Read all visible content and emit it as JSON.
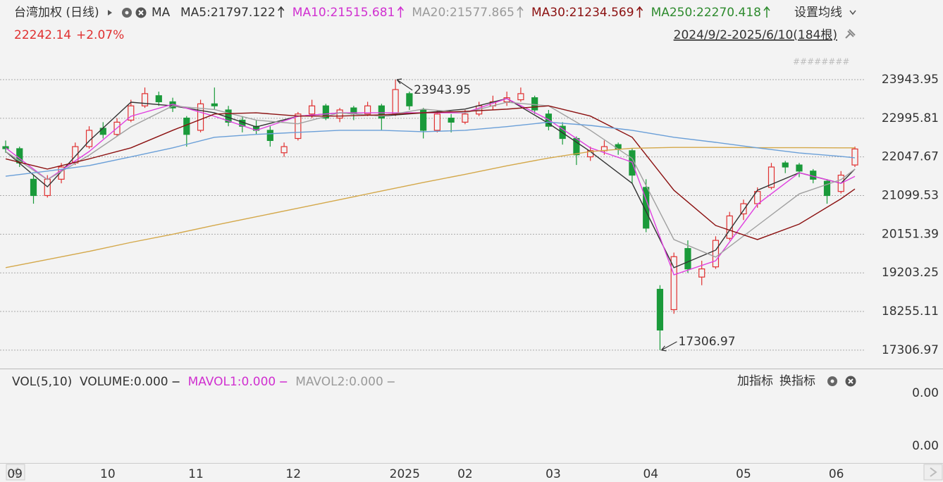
{
  "chart_data": {
    "type": "candlestick",
    "title": "台湾加权 (日线)",
    "indicator": "MA",
    "quote": {
      "price": "22242.14",
      "change": "+2.07%"
    },
    "settings_label": "设置均线",
    "range_label": "2024/9/2-2025/6/10(184根)",
    "up_color": "#e03030",
    "down_color": "#1a9a3a",
    "grid": true,
    "xlim": [
      0,
      183
    ],
    "ylim": [
      17080,
      24255
    ],
    "yticks": [
      23943.95,
      22995.81,
      22047.67,
      21099.53,
      20151.39,
      19203.25,
      18255.11,
      17306.97
    ],
    "xticks": [
      {
        "value": 2,
        "label": "09"
      },
      {
        "value": 22,
        "label": "10"
      },
      {
        "value": 41,
        "label": "11"
      },
      {
        "value": 62,
        "label": "12"
      },
      {
        "value": 86,
        "label": "2025"
      },
      {
        "value": 99,
        "label": "02"
      },
      {
        "value": 118,
        "label": "03"
      },
      {
        "value": 139,
        "label": "04"
      },
      {
        "value": 159,
        "label": "05"
      },
      {
        "value": 179,
        "label": "06"
      }
    ],
    "annotations": [
      {
        "value": 23943.95
      },
      {
        "value": 17306.97
      }
    ],
    "candles": {
      "x": [
        0,
        3,
        6,
        9,
        12,
        15,
        18,
        21,
        24,
        27,
        30,
        33,
        36,
        39,
        42,
        45,
        48,
        51,
        54,
        57,
        60,
        63,
        66,
        69,
        72,
        75,
        78,
        81,
        84,
        87,
        90,
        93,
        96,
        99,
        102,
        105,
        108,
        111,
        114,
        117,
        120,
        123,
        126,
        129,
        132,
        135,
        138,
        141,
        144,
        147,
        150,
        153,
        156,
        159,
        162,
        165,
        168,
        171,
        174,
        177,
        180,
        183
      ],
      "open": [
        22300,
        22250,
        21500,
        21100,
        21500,
        21900,
        22300,
        22750,
        22600,
        22950,
        23300,
        23550,
        23400,
        23000,
        22700,
        23350,
        23200,
        22950,
        22800,
        22700,
        22150,
        22500,
        23100,
        23300,
        23000,
        23250,
        23100,
        23300,
        23100,
        23600,
        23200,
        22700,
        23000,
        22900,
        23100,
        23300,
        23400,
        23450,
        23500,
        23100,
        22800,
        22500,
        22050,
        22200,
        22350,
        22200,
        21300,
        18800,
        18300,
        19800,
        19100,
        19350,
        20050,
        20650,
        20900,
        21300,
        21900,
        21850,
        21700,
        21450,
        21200,
        21850
      ],
      "high": [
        22450,
        22300,
        21600,
        21600,
        21900,
        22400,
        22800,
        22900,
        23000,
        23450,
        23750,
        23650,
        23500,
        23050,
        23450,
        23750,
        23300,
        23050,
        22950,
        22800,
        22400,
        23150,
        23450,
        23350,
        23250,
        23300,
        23400,
        23350,
        23943.95,
        23650,
        23250,
        23200,
        23100,
        23200,
        23400,
        23550,
        23650,
        23750,
        23550,
        23200,
        22900,
        22550,
        22300,
        22450,
        22400,
        22250,
        21500,
        18900,
        19700,
        20000,
        19500,
        20100,
        20700,
        21000,
        21300,
        21900,
        21950,
        21900,
        21750,
        21500,
        21700,
        22300
      ],
      "low": [
        22150,
        21800,
        20900,
        21050,
        21400,
        21850,
        22250,
        22500,
        22550,
        22900,
        23250,
        23300,
        23150,
        22300,
        22650,
        23200,
        22800,
        22650,
        22600,
        22300,
        22050,
        22450,
        23000,
        22950,
        22900,
        22950,
        23050,
        22700,
        23050,
        23200,
        22500,
        22650,
        22650,
        22850,
        23050,
        23200,
        23300,
        23400,
        23100,
        22700,
        22350,
        21850,
        21950,
        22100,
        22100,
        21400,
        20200,
        17306.97,
        18200,
        19200,
        18900,
        19300,
        20000,
        20500,
        20800,
        21250,
        21650,
        21550,
        21400,
        20900,
        21150,
        21800
      ],
      "close": [
        22250,
        21900,
        21100,
        21500,
        21800,
        22300,
        22700,
        22600,
        22900,
        23300,
        23600,
        23400,
        23250,
        22600,
        23350,
        23300,
        22900,
        22800,
        22700,
        22450,
        22300,
        23100,
        23300,
        23000,
        23200,
        23100,
        23300,
        23000,
        23700,
        23300,
        22700,
        23100,
        22900,
        23100,
        23300,
        23400,
        23500,
        23600,
        23200,
        22800,
        22500,
        22100,
        22200,
        22300,
        22250,
        21600,
        20300,
        17800,
        19600,
        19300,
        19300,
        20000,
        20600,
        20900,
        21200,
        21800,
        21800,
        21700,
        21500,
        21100,
        21600,
        22242.14
      ]
    },
    "ma_x": [
      0,
      9,
      18,
      27,
      36,
      45,
      54,
      63,
      72,
      81,
      90,
      99,
      108,
      117,
      126,
      135,
      144,
      153,
      162,
      171,
      180,
      183
    ],
    "series": [
      {
        "name": "MA5:21797.122",
        "color": "#333333",
        "legend_color": "#333333",
        "values": [
          22180,
          21315,
          22440,
          23390,
          23300,
          23130,
          22785,
          23045,
          23130,
          23050,
          23130,
          23220,
          23480,
          22870,
          22180,
          21400,
          19330,
          19760,
          21230,
          21660,
          21400,
          21750
        ]
      },
      {
        "name": "MA10:21515.681",
        "color": "#e040e0",
        "legend_color": "#d030d0",
        "values": [
          22270,
          21490,
          22180,
          23045,
          23340,
          23045,
          22700,
          23045,
          23130,
          23130,
          23130,
          23130,
          23480,
          22960,
          22270,
          21920,
          19155,
          19500,
          20885,
          21660,
          21400,
          21570
        ]
      },
      {
        "name": "MA20:21577.865",
        "color": "#a0a0a0",
        "legend_color": "#9a9a9a",
        "values": [
          22180,
          21490,
          22090,
          22785,
          23300,
          23210,
          22950,
          22860,
          23130,
          23050,
          23220,
          23130,
          23390,
          23300,
          22700,
          22010,
          20020,
          19590,
          20365,
          21140,
          21490,
          21750
        ]
      },
      {
        "name": "MA30:21234.569",
        "color": "#8b1010",
        "legend_color": "#8b1010",
        "values": [
          22000,
          21750,
          22000,
          22270,
          22700,
          23100,
          23130,
          23050,
          23050,
          23080,
          23130,
          23165,
          23220,
          23300,
          23050,
          22530,
          21230,
          20365,
          20020,
          20400,
          21020,
          21260
        ]
      },
      {
        "name": "MA250:22270.418",
        "color": "#d4a84a",
        "legend_color": "#2e8b2e",
        "values": [
          19330,
          19530,
          19730,
          19950,
          20150,
          20370,
          20580,
          20790,
          21000,
          21210,
          21420,
          21620,
          21830,
          22020,
          22180,
          22260,
          22280,
          22280,
          22275,
          22275,
          22270,
          22270
        ]
      },
      {
        "color": "#6a9fd8",
        "values": [
          21575,
          21700,
          21835,
          22050,
          22270,
          22530,
          22600,
          22650,
          22700,
          22700,
          22665,
          22700,
          22790,
          22900,
          22820,
          22700,
          22530,
          22405,
          22270,
          22145,
          22060,
          22025
        ]
      }
    ],
    "volume_panel": {
      "title": "VOL(5,10)",
      "legend": [
        {
          "name": "VOLUME:0.000",
          "color": "#333333"
        },
        {
          "name": "MAVOL1:0.000",
          "color": "#d030d0"
        },
        {
          "name": "MAVOL2:0.000",
          "color": "#9a9a9a"
        }
      ],
      "buttons": [
        "加指标",
        "换指标"
      ],
      "yticks": [
        {
          "value": 0,
          "label": "0.00"
        },
        {
          "value": 0,
          "label": "0.00"
        }
      ]
    }
  }
}
